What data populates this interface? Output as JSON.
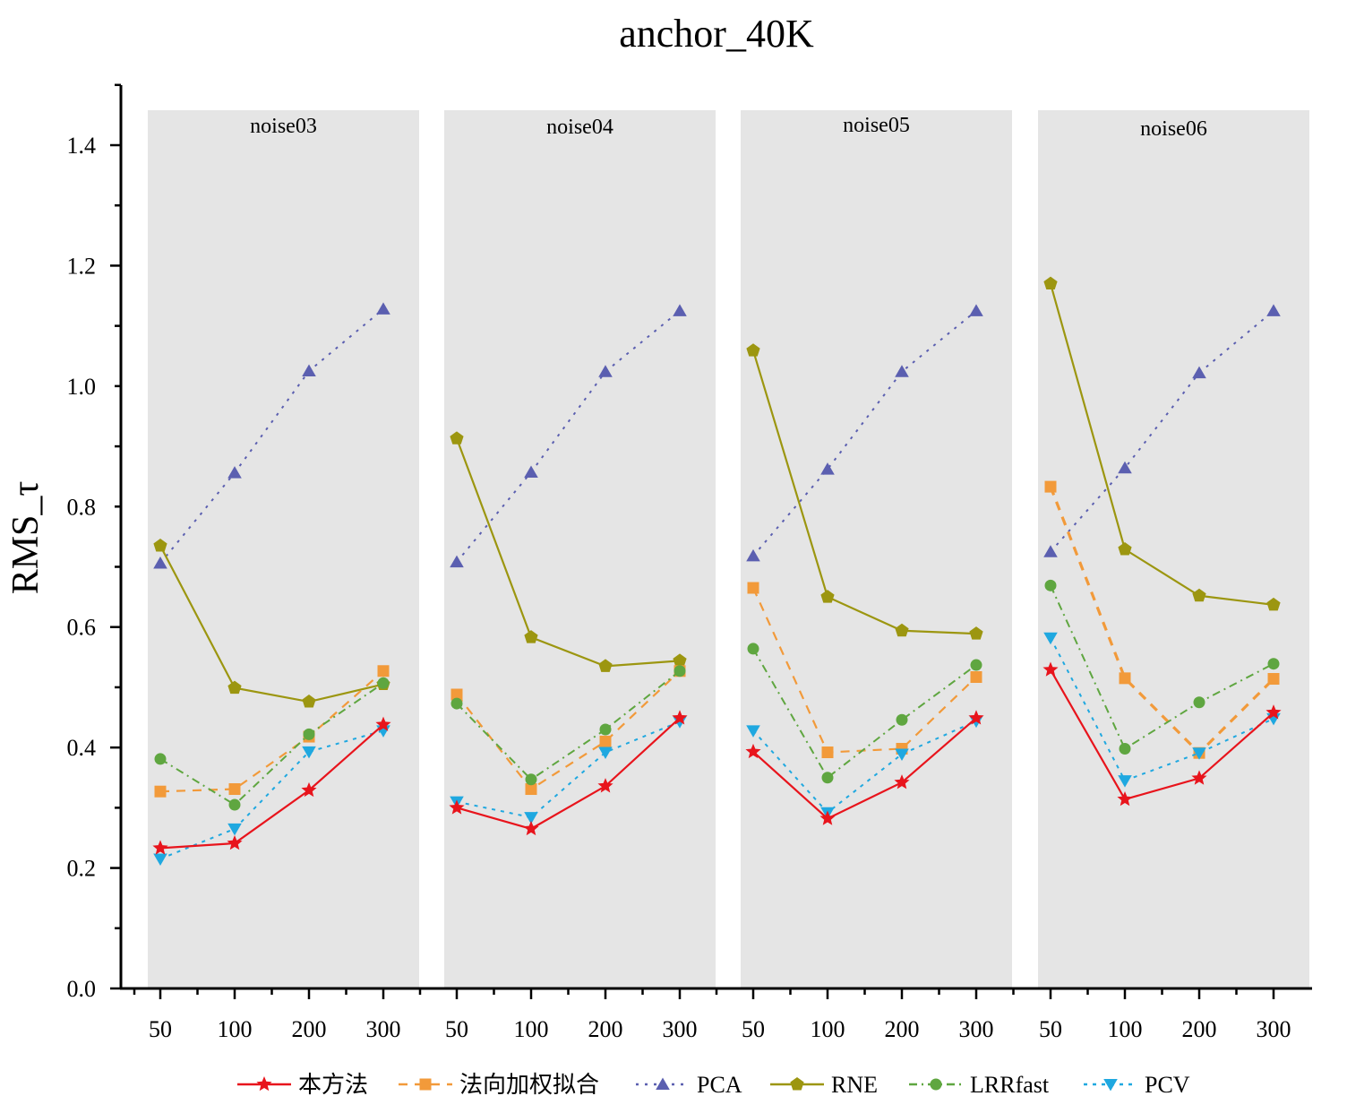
{
  "chart_data": {
    "type": "line",
    "title": "anchor_40K",
    "xlabel": "",
    "ylabel": "RMS_τ",
    "ylim": [
      0,
      1.5
    ],
    "yticks": [
      "0.0",
      "0.2",
      "0.4",
      "0.6",
      "0.8",
      "1.0",
      "1.2",
      "1.4"
    ],
    "yvalues": [
      0,
      0.2,
      0.4,
      0.6,
      0.8,
      1.0,
      1.2,
      1.4
    ],
    "categories": [
      "50",
      "100",
      "200",
      "300"
    ],
    "panels": [
      {
        "label": "noise03",
        "series": {
          "ours": [
            0.233,
            0.241,
            0.329,
            0.438
          ],
          "nwf": [
            0.327,
            0.331,
            0.418,
            0.527
          ],
          "pca": [
            0.706,
            0.856,
            1.025,
            1.128
          ],
          "rne": [
            0.735,
            0.499,
            0.476,
            0.505
          ],
          "lrr": [
            0.381,
            0.305,
            0.422,
            0.507
          ],
          "pcv": [
            0.215,
            0.265,
            0.393,
            0.428
          ]
        }
      },
      {
        "label": "noise04",
        "series": {
          "ours": [
            0.3,
            0.265,
            0.336,
            0.449
          ],
          "nwf": [
            0.488,
            0.331,
            0.41,
            0.527
          ],
          "pca": [
            0.708,
            0.857,
            1.024,
            1.125
          ],
          "rne": [
            0.913,
            0.583,
            0.535,
            0.544
          ],
          "lrr": [
            0.473,
            0.347,
            0.43,
            0.527
          ],
          "pcv": [
            0.31,
            0.284,
            0.392,
            0.443
          ]
        }
      },
      {
        "label": "noise05",
        "series": {
          "ours": [
            0.393,
            0.282,
            0.342,
            0.449
          ],
          "nwf": [
            0.665,
            0.392,
            0.398,
            0.517
          ],
          "pca": [
            0.718,
            0.862,
            1.024,
            1.125
          ],
          "rne": [
            1.059,
            0.65,
            0.594,
            0.589
          ],
          "lrr": [
            0.564,
            0.35,
            0.446,
            0.537
          ],
          "pcv": [
            0.428,
            0.292,
            0.389,
            0.444
          ]
        }
      },
      {
        "label": "noise06",
        "series": {
          "ours": [
            0.529,
            0.314,
            0.349,
            0.458
          ],
          "nwf": [
            0.833,
            0.515,
            0.391,
            0.514
          ],
          "pca": [
            0.725,
            0.864,
            1.022,
            1.125
          ],
          "rne": [
            1.17,
            0.729,
            0.652,
            0.637
          ],
          "lrr": [
            0.669,
            0.398,
            0.475,
            0.539
          ],
          "pcv": [
            0.582,
            0.345,
            0.391,
            0.448
          ]
        }
      }
    ],
    "legend": [
      {
        "key": "ours",
        "name": "本方法",
        "color": "#e8141c",
        "marker": "star",
        "dash": "solid"
      },
      {
        "key": "nwf",
        "name": "法向加权拟合",
        "color": "#f29a3a",
        "marker": "square",
        "dash": "dashed"
      },
      {
        "key": "pca",
        "name": "PCA",
        "color": "#5b5fb0",
        "marker": "triangle",
        "dash": "dotted"
      },
      {
        "key": "rne",
        "name": "RNE",
        "color": "#9c9610",
        "marker": "pentagon",
        "dash": "solid"
      },
      {
        "key": "lrr",
        "name": "LRRfast",
        "color": "#5fa640",
        "marker": "circle",
        "dash": "dashdot"
      },
      {
        "key": "pcv",
        "name": "PCV",
        "color": "#1fa8e0",
        "marker": "triangle-down",
        "dash": "dashdot2"
      }
    ],
    "panel_background": "#e5e5e5",
    "grid": false,
    "legend_position": "bottom"
  }
}
